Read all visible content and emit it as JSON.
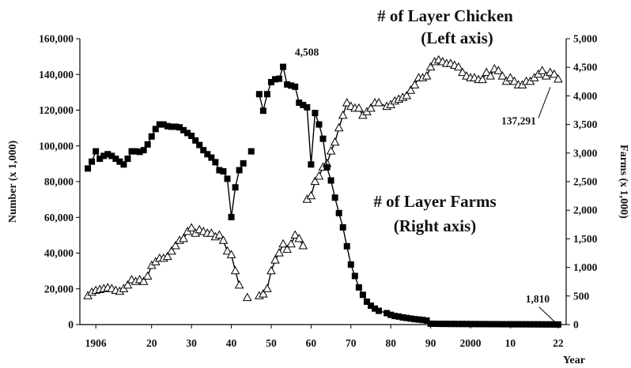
{
  "chart_data": {
    "type": "line",
    "xlabel": "Year",
    "ylabel_left": "Number (x 1,000)",
    "ylabel_right": "Farms (x 1,000)",
    "xlim": [
      1902,
      2024
    ],
    "ylim_left": [
      0,
      160000
    ],
    "ylim_right": [
      0,
      5000
    ],
    "x_ticks": [
      {
        "value": 1906,
        "label": "1906"
      },
      {
        "value": 1920,
        "label": "20"
      },
      {
        "value": 1930,
        "label": "30"
      },
      {
        "value": 1940,
        "label": "40"
      },
      {
        "value": 1950,
        "label": "50"
      },
      {
        "value": 1960,
        "label": "60"
      },
      {
        "value": 1970,
        "label": "70"
      },
      {
        "value": 1980,
        "label": "80"
      },
      {
        "value": 1990,
        "label": "90"
      },
      {
        "value": 2000,
        "label": "2000"
      },
      {
        "value": 2010,
        "label": "10"
      },
      {
        "value": 2022,
        "label": "22"
      }
    ],
    "y_ticks_left": [
      {
        "value": 0,
        "label": "0"
      },
      {
        "value": 20000,
        "label": "20,000"
      },
      {
        "value": 40000,
        "label": "40,000"
      },
      {
        "value": 60000,
        "label": "60,000"
      },
      {
        "value": 80000,
        "label": "80,000"
      },
      {
        "value": 100000,
        "label": "100,000"
      },
      {
        "value": 120000,
        "label": "120,000"
      },
      {
        "value": 140000,
        "label": "140,000"
      },
      {
        "value": 160000,
        "label": "160,000"
      }
    ],
    "y_ticks_right": [
      {
        "value": 0,
        "label": "0"
      },
      {
        "value": 500,
        "label": "500"
      },
      {
        "value": 1000,
        "label": "1,000"
      },
      {
        "value": 1500,
        "label": "1,500"
      },
      {
        "value": 2000,
        "label": "2,000"
      },
      {
        "value": 2500,
        "label": "2,500"
      },
      {
        "value": 3000,
        "label": "3,000"
      },
      {
        "value": 3500,
        "label": "3,500"
      },
      {
        "value": 4000,
        "label": "4,000"
      },
      {
        "value": 4500,
        "label": "4,500"
      },
      {
        "value": 5000,
        "label": "5,000"
      }
    ],
    "series": [
      {
        "name": "# of Layer Chicken",
        "name_note": "(Left axis)",
        "axis": "left",
        "marker": "open-triangle",
        "segments": [
          [
            [
              1904,
              16000
            ],
            [
              1905,
              18000
            ],
            [
              1906,
              19000
            ],
            [
              1907,
              19500
            ],
            [
              1908,
              20000
            ],
            [
              1909,
              20500
            ],
            [
              1910,
              20000
            ],
            [
              1911,
              19000
            ],
            [
              1912,
              18500
            ],
            [
              1913,
              20000
            ],
            [
              1914,
              22000
            ],
            [
              1915,
              25000
            ],
            [
              1916,
              24000
            ],
            [
              1917,
              25000
            ],
            [
              1918,
              24000
            ],
            [
              1919,
              27000
            ],
            [
              1920,
              33000
            ],
            [
              1921,
              35000
            ],
            [
              1922,
              37000
            ],
            [
              1923,
              37000
            ],
            [
              1924,
              38000
            ],
            [
              1925,
              41000
            ],
            [
              1926,
              44000
            ],
            [
              1927,
              47000
            ],
            [
              1928,
              48000
            ],
            [
              1929,
              52000
            ],
            [
              1930,
              54000
            ],
            [
              1931,
              51000
            ],
            [
              1932,
              53000
            ],
            [
              1933,
              52000
            ],
            [
              1934,
              51000
            ],
            [
              1935,
              51000
            ],
            [
              1936,
              49000
            ],
            [
              1937,
              50000
            ],
            [
              1938,
              47000
            ],
            [
              1939,
              41000
            ],
            [
              1940,
              39000
            ],
            [
              1941,
              30000
            ],
            [
              1942,
              22000
            ]
          ],
          [
            [
              1944,
              15000
            ]
          ],
          [
            [
              1947,
              16000
            ],
            [
              1948,
              17000
            ],
            [
              1949,
              20000
            ],
            [
              1950,
              30000
            ],
            [
              1951,
              36000
            ],
            [
              1952,
              40000
            ],
            [
              1953,
              45000
            ],
            [
              1954,
              42000
            ],
            [
              1955,
              45000
            ],
            [
              1956,
              50000
            ],
            [
              1957,
              48000
            ],
            [
              1958,
              44000
            ]
          ],
          [
            [
              1959,
              70000
            ],
            [
              1960,
              72000
            ],
            [
              1961,
              80000
            ],
            [
              1962,
              83000
            ],
            [
              1963,
              88000
            ],
            [
              1964,
              90000
            ],
            [
              1965,
              97000
            ],
            [
              1966,
              102000
            ],
            [
              1967,
              110000
            ],
            [
              1968,
              117000
            ],
            [
              1969,
              124000
            ],
            [
              1970,
              122000
            ],
            [
              1971,
              121000
            ],
            [
              1972,
              121000
            ],
            [
              1973,
              117000
            ],
            [
              1974,
              119000
            ],
            [
              1975,
              121000
            ],
            [
              1976,
              124000
            ],
            [
              1977,
              124000
            ],
            [
              1979,
              122000
            ],
            [
              1980,
              123000
            ],
            [
              1981,
              125000
            ],
            [
              1982,
              126000
            ],
            [
              1983,
              127000
            ],
            [
              1984,
              128000
            ],
            [
              1985,
              131000
            ],
            [
              1986,
              134000
            ],
            [
              1987,
              138000
            ],
            [
              1988,
              138000
            ],
            [
              1989,
              139000
            ],
            [
              1990,
              144000
            ],
            [
              1991,
              147000
            ],
            [
              1992,
              148000
            ],
            [
              1993,
              147000
            ],
            [
              1994,
              146000
            ],
            [
              1995,
              146000
            ],
            [
              1996,
              145000
            ],
            [
              1997,
              144000
            ],
            [
              1998,
              141000
            ],
            [
              1999,
              139000
            ],
            [
              2000,
              138000
            ],
            [
              2001,
              138000
            ],
            [
              2002,
              137000
            ],
            [
              2003,
              137000
            ],
            [
              2004,
              141000
            ],
            [
              2005,
              139000
            ],
            [
              2006,
              143000
            ],
            [
              2007,
              142000
            ],
            [
              2008,
              139000
            ],
            [
              2009,
              136000
            ],
            [
              2010,
              138000
            ],
            [
              2011,
              136000
            ],
            [
              2012,
              134000
            ],
            [
              2013,
              134000
            ],
            [
              2014,
              136000
            ],
            [
              2015,
              136000
            ],
            [
              2016,
              138000
            ],
            [
              2017,
              140000
            ],
            [
              2018,
              142000
            ],
            [
              2019,
              139000
            ],
            [
              2020,
              141000
            ],
            [
              2021,
              140000
            ],
            [
              2022,
              137291
            ]
          ]
        ]
      },
      {
        "name": "# of Layer Farms",
        "name_note": "(Right axis)",
        "axis": "right",
        "marker": "filled-square",
        "segments": [
          [
            [
              1904,
              2730
            ],
            [
              1905,
              2850
            ],
            [
              1906,
              3030
            ],
            [
              1907,
              2900
            ],
            [
              1908,
              2950
            ],
            [
              1909,
              2980
            ],
            [
              1910,
              2950
            ],
            [
              1911,
              2900
            ],
            [
              1912,
              2850
            ],
            [
              1913,
              2800
            ],
            [
              1914,
              2900
            ],
            [
              1915,
              3030
            ],
            [
              1916,
              3030
            ],
            [
              1917,
              3020
            ],
            [
              1918,
              3050
            ],
            [
              1919,
              3150
            ],
            [
              1920,
              3290
            ],
            [
              1921,
              3420
            ],
            [
              1922,
              3500
            ],
            [
              1923,
              3500
            ],
            [
              1924,
              3470
            ],
            [
              1925,
              3460
            ],
            [
              1926,
              3460
            ],
            [
              1927,
              3450
            ],
            [
              1928,
              3400
            ],
            [
              1929,
              3350
            ],
            [
              1930,
              3300
            ],
            [
              1931,
              3220
            ],
            [
              1932,
              3140
            ],
            [
              1933,
              3050
            ],
            [
              1934,
              2980
            ],
            [
              1935,
              2920
            ],
            [
              1936,
              2840
            ],
            [
              1937,
              2700
            ],
            [
              1938,
              2680
            ],
            [
              1939,
              2550
            ],
            [
              1940,
              1880
            ],
            [
              1941,
              2400
            ],
            [
              1942,
              2700
            ],
            [
              1943,
              2820
            ]
          ],
          [
            [
              1945,
              3030
            ]
          ],
          [
            [
              1947,
              4030
            ],
            [
              1948,
              3740
            ],
            [
              1949,
              4030
            ],
            [
              1950,
              4240
            ],
            [
              1951,
              4290
            ],
            [
              1952,
              4300
            ],
            [
              1953,
              4508
            ],
            [
              1954,
              4200
            ],
            [
              1955,
              4180
            ],
            [
              1956,
              4160
            ],
            [
              1957,
              3880
            ],
            [
              1958,
              3840
            ],
            [
              1959,
              3800
            ],
            [
              1960,
              2800
            ],
            [
              1961,
              3700
            ],
            [
              1962,
              3500
            ],
            [
              1963,
              3250
            ],
            [
              1964,
              2750
            ],
            [
              1965,
              2520
            ],
            [
              1966,
              2220
            ],
            [
              1967,
              1950
            ],
            [
              1968,
              1700
            ],
            [
              1969,
              1370
            ],
            [
              1970,
              1050
            ],
            [
              1971,
              850
            ],
            [
              1972,
              650
            ],
            [
              1973,
              520
            ],
            [
              1974,
              400
            ],
            [
              1975,
              330
            ],
            [
              1976,
              280
            ],
            [
              1977,
              240
            ],
            [
              1979,
              200
            ],
            [
              1980,
              170
            ],
            [
              1981,
              150
            ],
            [
              1982,
              140
            ],
            [
              1983,
              125
            ],
            [
              1984,
              115
            ],
            [
              1985,
              105
            ],
            [
              1986,
              95
            ],
            [
              1987,
              88
            ],
            [
              1988,
              80
            ],
            [
              1989,
              70
            ],
            [
              1990,
              15
            ],
            [
              1991,
              14
            ],
            [
              1992,
              13
            ],
            [
              1993,
              12
            ],
            [
              1994,
              12
            ],
            [
              1995,
              11
            ],
            [
              1996,
              11
            ],
            [
              1997,
              10
            ],
            [
              1998,
              10
            ],
            [
              1999,
              10
            ],
            [
              2000,
              9
            ],
            [
              2001,
              9
            ],
            [
              2002,
              8
            ],
            [
              2003,
              8
            ],
            [
              2004,
              8
            ],
            [
              2005,
              7
            ],
            [
              2006,
              7
            ],
            [
              2007,
              7
            ],
            [
              2008,
              6
            ],
            [
              2009,
              6
            ],
            [
              2010,
              6
            ],
            [
              2011,
              5
            ],
            [
              2012,
              5
            ],
            [
              2013,
              5
            ],
            [
              2014,
              5
            ],
            [
              2015,
              4
            ],
            [
              2016,
              4
            ],
            [
              2017,
              4
            ],
            [
              2018,
              3
            ],
            [
              2019,
              3
            ],
            [
              2020,
              3
            ],
            [
              2021,
              2
            ],
            [
              2022,
              1.81
            ]
          ]
        ]
      }
    ],
    "annotations": [
      {
        "text": "4,508",
        "series": "# of Layer Farms",
        "x": 1953,
        "y": 4508
      },
      {
        "text": "137,291",
        "series": "# of Layer Chicken",
        "x": 2022,
        "y": 137291
      },
      {
        "text": "1,810",
        "series": "# of Layer Farms",
        "x": 2022,
        "y": 1.81
      }
    ],
    "grid": false
  }
}
